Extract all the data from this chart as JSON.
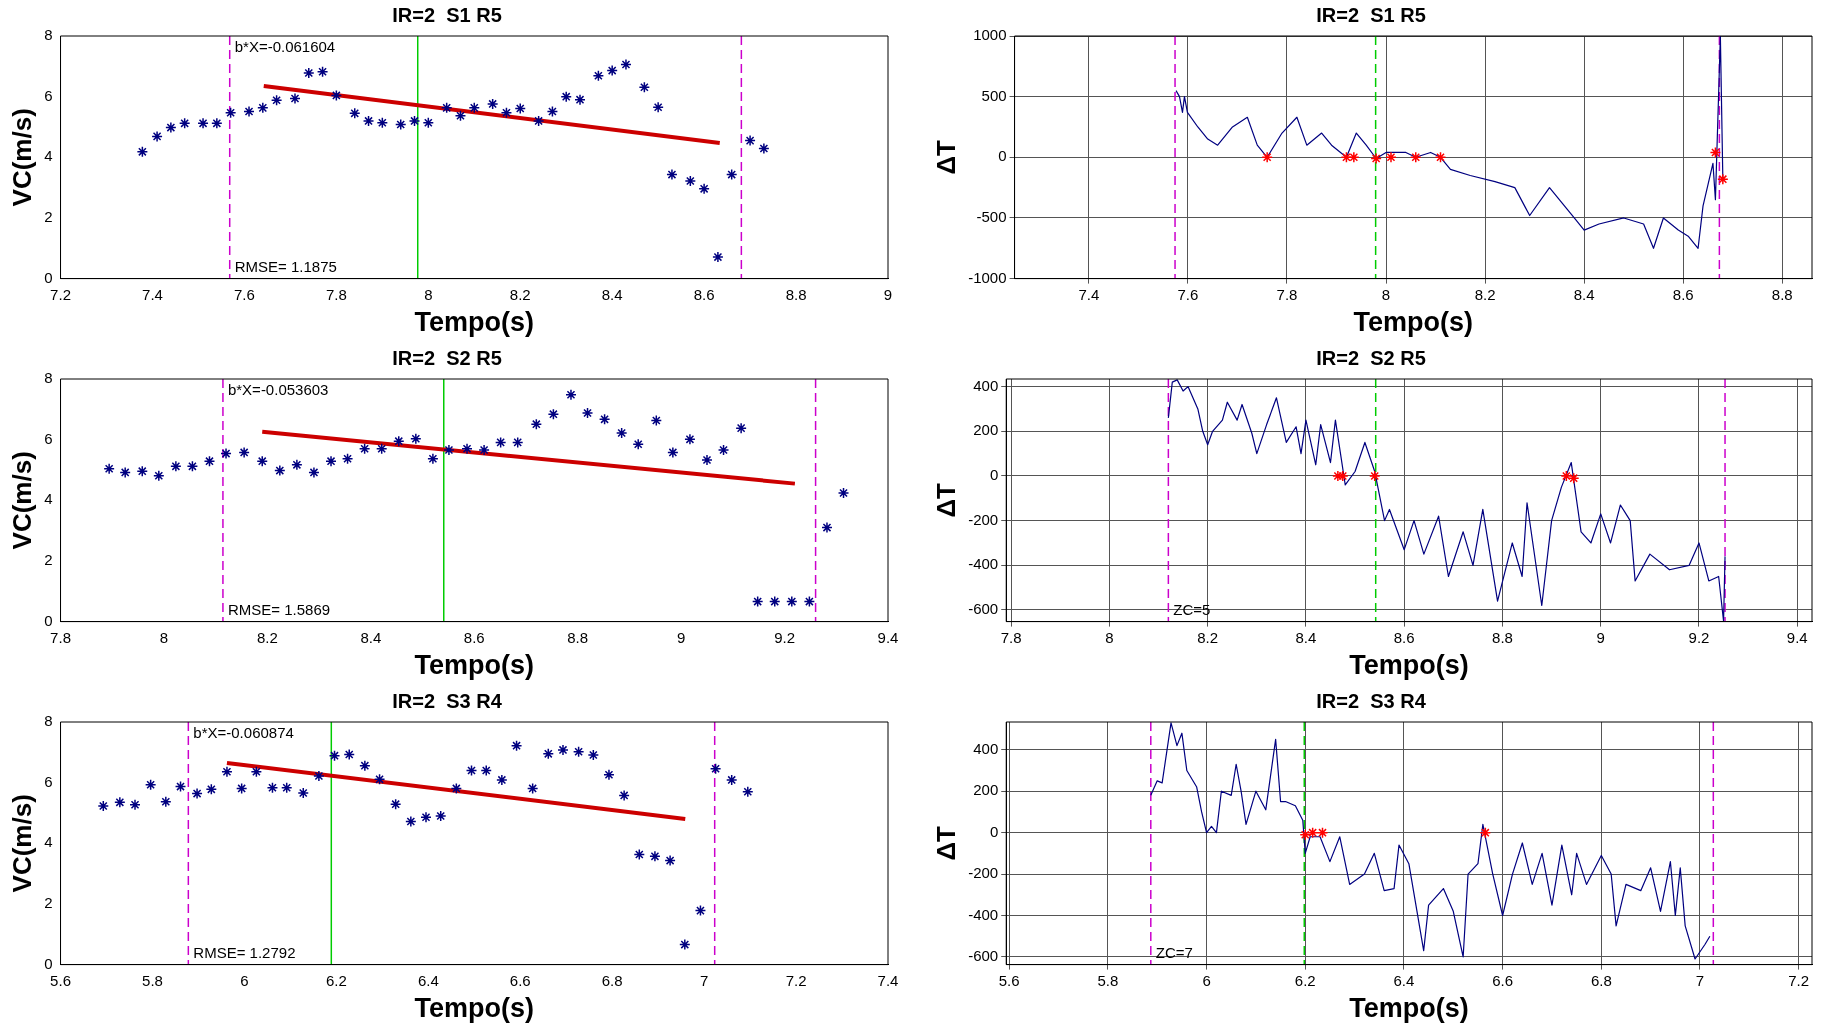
{
  "chart_data": [
    {
      "type": "scatter",
      "title": "IR=2  S1 R5",
      "xlabel": "Tempo(s)",
      "ylabel": "VC(m/s)",
      "xlim": [
        7.2,
        9
      ],
      "xticks": [
        7.2,
        7.4,
        7.6,
        7.8,
        8,
        8.2,
        8.4,
        8.6,
        8.8,
        9
      ],
      "ylim": [
        0,
        8
      ],
      "yticks": [
        0,
        2,
        4,
        6,
        8
      ],
      "annotations": [
        "b*X=-0.061604",
        "RMSE= 1.1875"
      ],
      "series": [
        {
          "color": "#000080",
          "marker": "cross",
          "x": [
            7.378,
            7.41,
            7.44,
            7.47,
            7.51,
            7.54,
            7.57,
            7.61,
            7.64,
            7.67,
            7.71,
            7.74,
            7.77,
            7.8,
            7.84,
            7.87,
            7.9,
            7.94,
            7.97,
            8.0,
            8.04,
            8.07,
            8.1,
            8.14,
            8.17,
            8.2,
            8.24,
            8.27,
            8.3,
            8.33,
            8.37,
            8.4,
            8.43,
            8.47,
            8.5,
            8.53,
            8.57,
            8.6,
            8.63,
            8.66,
            8.7,
            8.73
          ],
          "values": [
            4.18,
            4.69,
            4.98,
            5.12,
            5.12,
            5.12,
            5.47,
            5.51,
            5.63,
            5.88,
            5.94,
            6.78,
            6.82,
            6.04,
            5.45,
            5.2,
            5.14,
            5.08,
            5.2,
            5.14,
            5.63,
            5.37,
            5.63,
            5.76,
            5.47,
            5.61,
            5.2,
            5.51,
            6.0,
            5.9,
            6.69,
            6.86,
            7.06,
            6.31,
            5.65,
            3.43,
            3.22,
            2.96,
            0.71,
            3.43,
            4.55,
            4.29
          ]
        },
        {
          "type": "line",
          "color": "#cc0000",
          "marker": "none",
          "x": [
            7.642,
            8.634
          ],
          "values": [
            6.35,
            4.47
          ]
        }
      ],
      "ref_lines": [
        {
          "axis": "x",
          "value": 7.568,
          "color": "#cc00cc",
          "line_style": "dashed"
        },
        {
          "axis": "x",
          "value": 7.977,
          "color": "#00cc00",
          "line_style": "solid"
        },
        {
          "axis": "x",
          "value": 8.681,
          "color": "#cc00cc",
          "line_style": "dashed"
        }
      ]
    },
    {
      "type": "line",
      "title": "IR=2  S1 R5",
      "xlabel": "Tempo(s)",
      "ylabel": "ΔT",
      "grid": true,
      "xlim": [
        7.25,
        8.86
      ],
      "xticks": [
        7.4,
        7.6,
        7.8,
        8,
        8.2,
        8.4,
        8.6,
        8.8
      ],
      "ylim": [
        -1000,
        1000
      ],
      "yticks": [
        -1000,
        -500,
        0,
        500,
        1000
      ],
      "series": [
        {
          "color": "#000080",
          "marker": "none",
          "x": [
            7.576,
            7.583,
            7.589,
            7.593,
            7.599,
            7.62,
            7.64,
            7.66,
            7.69,
            7.72,
            7.74,
            7.76,
            7.79,
            7.82,
            7.84,
            7.87,
            7.89,
            7.92,
            7.94,
            7.96,
            7.98,
            8.0,
            8.04,
            8.06,
            8.09,
            8.11,
            8.13,
            8.17,
            8.22,
            8.26,
            8.29,
            8.33,
            8.38,
            8.4,
            8.43,
            8.48,
            8.52,
            8.54,
            8.56,
            8.59,
            8.61,
            8.63,
            8.64,
            8.66,
            8.665,
            8.675,
            8.68
          ],
          "values": [
            550,
            500,
            370,
            500,
            370,
            250,
            150,
            100,
            250,
            330,
            100,
            0,
            200,
            330,
            100,
            200,
            100,
            0,
            200,
            100,
            -10,
            40,
            40,
            0,
            40,
            0,
            -100,
            -150,
            -200,
            -250,
            -480,
            -250,
            -500,
            -600,
            -550,
            -500,
            -550,
            -750,
            -500,
            -600,
            -650,
            -750,
            -400,
            -50,
            -350,
            1000,
            -180
          ]
        },
        {
          "type": "scatter",
          "color": "#ff0000",
          "marker": "cross",
          "x": [
            7.76,
            7.92,
            7.935,
            7.98,
            8.01,
            8.06,
            8.11,
            8.665,
            8.68
          ],
          "values": [
            0,
            0,
            0,
            -10,
            0,
            0,
            0,
            40,
            -180
          ]
        }
      ],
      "ref_lines": [
        {
          "axis": "x",
          "value": 7.574,
          "color": "#cc00cc",
          "line_style": "dashed"
        },
        {
          "axis": "x",
          "value": 7.979,
          "color": "#00cc00",
          "line_style": "dashed"
        },
        {
          "axis": "x",
          "value": 8.673,
          "color": "#cc00cc",
          "line_style": "dashed"
        }
      ]
    },
    {
      "type": "scatter",
      "title": "IR=2  S2 R5",
      "xlabel": "Tempo(s)",
      "ylabel": "VC(m/s)",
      "xlim": [
        7.8,
        9.4
      ],
      "xticks": [
        7.8,
        8,
        8.2,
        8.4,
        8.6,
        8.8,
        9,
        9.2,
        9.4
      ],
      "ylim": [
        0,
        8
      ],
      "yticks": [
        0,
        2,
        4,
        6,
        8
      ],
      "annotations": [
        "b*X=-0.053603",
        "RMSE= 1.5869"
      ],
      "series": [
        {
          "color": "#000080",
          "marker": "cross",
          "x": [
            7.894,
            7.925,
            7.958,
            7.99,
            8.023,
            8.055,
            8.088,
            8.12,
            8.155,
            8.19,
            8.224,
            8.257,
            8.29,
            8.323,
            8.355,
            8.388,
            8.421,
            8.454,
            8.487,
            8.52,
            8.551,
            8.586,
            8.619,
            8.651,
            8.684,
            8.72,
            8.753,
            8.787,
            8.819,
            8.852,
            8.885,
            8.917,
            8.952,
            8.984,
            9.017,
            9.05,
            9.082,
            9.116,
            9.148,
            9.181,
            9.214,
            9.248,
            9.282,
            9.314
          ],
          "values": [
            5.04,
            4.92,
            4.96,
            4.81,
            5.12,
            5.12,
            5.29,
            5.54,
            5.58,
            5.29,
            4.98,
            5.17,
            4.92,
            5.29,
            5.37,
            5.7,
            5.7,
            5.95,
            6.03,
            5.37,
            5.66,
            5.7,
            5.66,
            5.91,
            5.91,
            6.51,
            6.84,
            7.48,
            6.88,
            6.67,
            6.22,
            5.85,
            6.63,
            5.58,
            6.01,
            5.33,
            5.66,
            6.38,
            0.66,
            0.66,
            0.66,
            0.66,
            3.1,
            4.24
          ]
        },
        {
          "type": "line",
          "color": "#cc0000",
          "marker": "none",
          "x": [
            8.19,
            9.22
          ],
          "values": [
            6.26,
            4.55
          ]
        }
      ],
      "ref_lines": [
        {
          "axis": "x",
          "value": 8.114,
          "color": "#cc00cc",
          "line_style": "dashed"
        },
        {
          "axis": "x",
          "value": 8.541,
          "color": "#00cc00",
          "line_style": "solid"
        },
        {
          "axis": "x",
          "value": 9.26,
          "color": "#cc00cc",
          "line_style": "dashed"
        }
      ]
    },
    {
      "type": "line",
      "title": "IR=2  S2 R5",
      "xlabel": "Tempo(s)",
      "ylabel": "ΔT",
      "grid": true,
      "xlim": [
        7.79,
        9.43
      ],
      "xticks": [
        7.8,
        8,
        8.2,
        8.4,
        8.6,
        8.8,
        9,
        9.2,
        9.4
      ],
      "ylim": [
        -652,
        434
      ],
      "yticks": [
        -600,
        -400,
        -200,
        0,
        200,
        400
      ],
      "annotations": [
        "ZC=5"
      ],
      "series": [
        {
          "color": "#000080",
          "marker": "none",
          "x": [
            8.12,
            8.128,
            8.138,
            8.15,
            8.16,
            8.18,
            8.19,
            8.2,
            8.21,
            8.23,
            8.24,
            8.26,
            8.27,
            8.29,
            8.3,
            8.32,
            8.34,
            8.36,
            8.38,
            8.39,
            8.4,
            8.42,
            8.43,
            8.45,
            8.46,
            8.48,
            8.5,
            8.52,
            8.54,
            8.56,
            8.57,
            8.6,
            8.62,
            8.64,
            8.67,
            8.69,
            8.72,
            8.74,
            8.76,
            8.79,
            8.82,
            8.84,
            8.85,
            8.88,
            8.9,
            8.92,
            8.94,
            8.96,
            8.98,
            9.0,
            9.02,
            9.04,
            9.06,
            9.07,
            9.1,
            9.14,
            9.18,
            9.2,
            9.22,
            9.24,
            9.25,
            9.253
          ],
          "values": [
            260,
            420,
            430,
            380,
            400,
            300,
            200,
            140,
            200,
            250,
            330,
            250,
            320,
            190,
            100,
            230,
            350,
            150,
            220,
            100,
            250,
            50,
            230,
            60,
            250,
            -40,
            20,
            150,
            20,
            -200,
            -150,
            -330,
            -200,
            -350,
            -180,
            -450,
            -250,
            -400,
            -150,
            -560,
            -300,
            -450,
            -120,
            -580,
            -200,
            -50,
            60,
            -250,
            -300,
            -170,
            -300,
            -130,
            -200,
            -470,
            -350,
            -420,
            -400,
            -300,
            -470,
            -450,
            -650,
            -360
          ]
        },
        {
          "type": "scatter",
          "color": "#ff0000",
          "marker": "cross",
          "x": [
            8.465,
            8.475,
            8.54,
            8.93,
            8.945
          ],
          "values": [
            0,
            0,
            0,
            0,
            -10
          ]
        }
      ],
      "ref_lines": [
        {
          "axis": "x",
          "value": 8.12,
          "color": "#cc00cc",
          "line_style": "dashed"
        },
        {
          "axis": "x",
          "value": 8.542,
          "color": "#00cc00",
          "line_style": "dashed"
        },
        {
          "axis": "x",
          "value": 9.253,
          "color": "#cc00cc",
          "line_style": "dashed"
        }
      ]
    },
    {
      "type": "scatter",
      "title": "IR=2  S3 R4",
      "xlabel": "Tempo(s)",
      "ylabel": "VC(m/s)",
      "xlim": [
        5.6,
        7.4
      ],
      "xticks": [
        5.6,
        5.8,
        6,
        6.2,
        6.4,
        6.6,
        6.8,
        7,
        7.2,
        7.4
      ],
      "ylim": [
        0,
        8
      ],
      "yticks": [
        0,
        2,
        4,
        6,
        8
      ],
      "annotations": [
        "b*X=-0.060874",
        "RMSE= 1.2792"
      ],
      "series": [
        {
          "color": "#000080",
          "marker": "cross",
          "x": [
            5.693,
            5.729,
            5.762,
            5.796,
            5.829,
            5.861,
            5.897,
            5.928,
            5.962,
            5.994,
            6.026,
            6.061,
            6.092,
            6.128,
            6.162,
            6.196,
            6.228,
            6.262,
            6.294,
            6.329,
            6.362,
            6.395,
            6.427,
            6.461,
            6.494,
            6.526,
            6.56,
            6.592,
            6.627,
            6.661,
            6.693,
            6.727,
            6.759,
            6.793,
            6.826,
            6.859,
            6.893,
            6.926,
            6.958,
            6.992,
            7.025,
            7.06,
            7.095
          ],
          "values": [
            5.23,
            5.35,
            5.27,
            5.93,
            5.37,
            5.87,
            5.64,
            5.78,
            6.36,
            5.81,
            6.36,
            5.83,
            5.83,
            5.66,
            6.22,
            6.89,
            6.93,
            6.56,
            6.11,
            5.29,
            4.72,
            4.86,
            4.9,
            5.81,
            6.4,
            6.4,
            6.09,
            7.22,
            5.81,
            6.95,
            7.08,
            7.02,
            6.91,
            6.26,
            5.58,
            3.63,
            3.57,
            3.43,
            0.66,
            1.78,
            6.46,
            6.09,
            5.7
          ]
        },
        {
          "type": "line",
          "color": "#cc0000",
          "marker": "none",
          "x": [
            5.962,
            6.959
          ],
          "values": [
            6.65,
            4.8
          ]
        }
      ],
      "ref_lines": [
        {
          "axis": "x",
          "value": 5.878,
          "color": "#cc00cc",
          "line_style": "dashed"
        },
        {
          "axis": "x",
          "value": 6.189,
          "color": "#00cc00",
          "line_style": "solid"
        },
        {
          "axis": "x",
          "value": 7.023,
          "color": "#cc00cc",
          "line_style": "dashed"
        }
      ]
    },
    {
      "type": "line",
      "title": "IR=2  S3 R4",
      "xlabel": "Tempo(s)",
      "ylabel": "ΔT",
      "grid": true,
      "xlim": [
        5.594,
        7.227
      ],
      "xticks": [
        5.6,
        5.8,
        6,
        6.2,
        6.4,
        6.6,
        6.8,
        7,
        7.2
      ],
      "ylim": [
        -637,
        534
      ],
      "yticks": [
        -600,
        -400,
        -200,
        0,
        200,
        400
      ],
      "annotations": [
        "ZC=7"
      ],
      "series": [
        {
          "color": "#000080",
          "marker": "none",
          "x": [
            5.887,
            5.9,
            5.91,
            5.928,
            5.94,
            5.95,
            5.96,
            5.98,
            5.99,
            6.0,
            6.01,
            6.02,
            6.03,
            6.05,
            6.06,
            6.07,
            6.08,
            6.1,
            6.12,
            6.14,
            6.15,
            6.16,
            6.18,
            6.195,
            6.2,
            6.21,
            6.23,
            6.25,
            6.27,
            6.29,
            6.32,
            6.34,
            6.36,
            6.38,
            6.39,
            6.41,
            6.44,
            6.45,
            6.48,
            6.5,
            6.52,
            6.53,
            6.55,
            6.56,
            6.58,
            6.6,
            6.62,
            6.64,
            6.66,
            6.68,
            6.7,
            6.72,
            6.74,
            6.75,
            6.77,
            6.8,
            6.82,
            6.83,
            6.85,
            6.88,
            6.9,
            6.92,
            6.94,
            6.95,
            6.96,
            6.97,
            6.99,
            7.01,
            7.02
          ],
          "values": [
            180,
            250,
            240,
            530,
            420,
            480,
            300,
            220,
            100,
            0,
            30,
            0,
            200,
            180,
            330,
            200,
            40,
            200,
            110,
            450,
            150,
            150,
            130,
            60,
            -100,
            -20,
            -20,
            -140,
            -20,
            -250,
            -200,
            -100,
            -280,
            -270,
            -60,
            -150,
            -570,
            -350,
            -270,
            -380,
            -600,
            -200,
            -150,
            40,
            -200,
            -400,
            -200,
            -50,
            -250,
            -100,
            -350,
            -60,
            -300,
            -100,
            -250,
            -110,
            -200,
            -450,
            -250,
            -280,
            -170,
            -380,
            -140,
            -400,
            -170,
            -450,
            -610,
            -540,
            -500
          ]
        },
        {
          "type": "scatter",
          "color": "#ff0000",
          "marker": "cross",
          "x": [
            6.2,
            6.215,
            6.235,
            6.565
          ],
          "values": [
            -10,
            0,
            0,
            0
          ]
        }
      ],
      "ref_lines": [
        {
          "axis": "x",
          "value": 5.887,
          "color": "#cc00cc",
          "line_style": "dashed"
        },
        {
          "axis": "x",
          "value": 6.198,
          "color": "#00cc00",
          "line_style": "dashed"
        },
        {
          "axis": "x",
          "value": 7.027,
          "color": "#cc00cc",
          "line_style": "dashed"
        }
      ]
    }
  ]
}
